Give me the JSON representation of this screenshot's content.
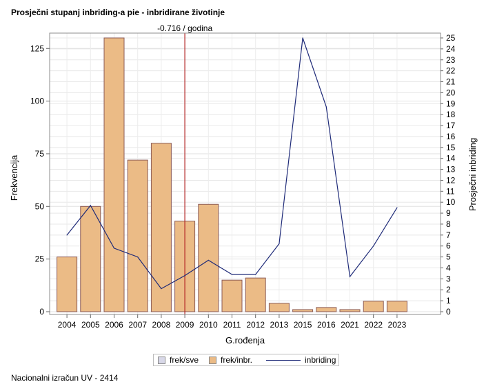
{
  "title": "Prosječni stupanj inbriding-a pie - inbridirane životinje",
  "footer": "Nacionalni izračun UV - 2414",
  "chart_data": {
    "type": "bar",
    "categories": [
      "2004",
      "2005",
      "2006",
      "2007",
      "2008",
      "2009",
      "2010",
      "2011",
      "2012",
      "2013",
      "2015",
      "2016",
      "2021",
      "2022",
      "2023"
    ],
    "xlabel": "G.rođenja",
    "ylabel": "Frekvencija",
    "y2label": "Prosječni inbriding",
    "ylim": [
      0,
      130
    ],
    "y2lim": [
      0,
      25
    ],
    "yticks": [
      0,
      25,
      50,
      75,
      100,
      125
    ],
    "y2ticks": [
      0,
      1,
      2,
      3,
      4,
      5,
      6,
      7,
      8,
      9,
      10,
      11,
      12,
      13,
      14,
      15,
      16,
      17,
      18,
      19,
      20,
      21,
      22,
      23,
      24,
      25
    ],
    "grid": true,
    "series": [
      {
        "name": "frek/inbr.",
        "kind": "bar",
        "color": "#EBBB86",
        "values": [
          26,
          50,
          130,
          72,
          80,
          43,
          51,
          15,
          16,
          4,
          1,
          2,
          1,
          5,
          5
        ]
      },
      {
        "name": "inbriding",
        "kind": "line",
        "axis": "right",
        "color": "#1E2A78",
        "values": [
          7.0,
          9.7,
          5.8,
          5.0,
          2.1,
          3.3,
          4.7,
          3.4,
          3.4,
          6.2,
          25.0,
          18.7,
          3.2,
          6.0,
          9.5
        ]
      }
    ],
    "reference_line": {
      "category": "2009",
      "label": "-0.716 / godina",
      "color": "#B22222"
    },
    "legend": {
      "placement": "bottom",
      "items": [
        {
          "label": "frek/sve",
          "kind": "swatch",
          "color": "#D8D8E8"
        },
        {
          "label": "frek/inbr.",
          "kind": "swatch",
          "color": "#EBBB86"
        },
        {
          "label": "inbriding",
          "kind": "line",
          "color": "#1E2A78"
        }
      ]
    }
  }
}
